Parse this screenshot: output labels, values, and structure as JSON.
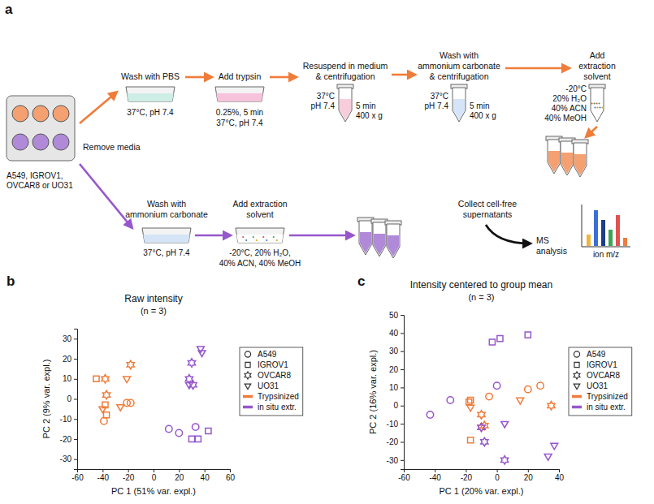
{
  "diagram": {
    "letter": "a",
    "cells": "A549, IGROV1, OVCAR8 or UO31",
    "remove_media": "Remove media",
    "trypsinized_steps": [
      {
        "title": [
          "Wash with PBS"
        ],
        "below": [
          "37°C, pH 7.4"
        ]
      },
      {
        "title": [
          "Add trypsin"
        ],
        "below": [
          "0.25%, 5 min",
          "37°C, pH 7.4"
        ]
      },
      {
        "title": [
          "Resuspend in medium",
          "& centrifugation"
        ],
        "left": [
          "37°C",
          "pH 7.4"
        ],
        "right": [
          "5 min",
          "400 x g"
        ]
      },
      {
        "title": [
          "Wash with",
          "ammonium carbonate",
          "& centrifugation"
        ],
        "left": [
          "37°C",
          "pH 7.4"
        ],
        "right": [
          "5 min",
          "400 x g"
        ]
      },
      {
        "title": [
          "Add",
          "extraction",
          "solvent"
        ],
        "left": [
          "-20°C",
          "20% H₂O",
          "40% ACN",
          "40% MeOH"
        ]
      }
    ],
    "in_situ_steps": [
      {
        "title": [
          "Wash with",
          "ammonium carbonate"
        ],
        "below": [
          "37°C, pH 7.4"
        ]
      },
      {
        "title": [
          "Add extraction",
          "solvent"
        ],
        "below": [
          "-20°C, 20% H₂O,",
          "40% ACN, 40% MeOH"
        ]
      }
    ],
    "collect": [
      "Collect cell-free",
      "supernatants"
    ],
    "ms": [
      "MS",
      "analysis"
    ],
    "ms_axis": "ion m/z"
  },
  "chart_data": [
    {
      "type": "scatter",
      "panel": "b",
      "title": "Raw intensity",
      "subtitle": "(n = 3)",
      "x_label": "PC 1 (51% var. expl.)",
      "y_label": "PC 2 (9% var. expl.)",
      "xlim": [
        -60,
        60
      ],
      "ylim": [
        -35,
        35
      ],
      "xticks": [
        -60,
        -40,
        -20,
        0,
        20,
        40,
        60
      ],
      "yticks": [
        -30,
        -20,
        -10,
        0,
        10,
        20,
        30
      ],
      "grid": false,
      "legend": "right",
      "groups": [
        {
          "name": "Trypsinized",
          "color": "#f07c3a",
          "series": [
            {
              "name": "A549",
              "marker": "circle",
              "x": [
                -39,
                -21,
                -18
              ],
              "y": [
                -11,
                -2,
                -2
              ]
            },
            {
              "name": "IGROV1",
              "marker": "square",
              "x": [
                -45,
                -38,
                -37
              ],
              "y": [
                10,
                -3,
                -8
              ]
            },
            {
              "name": "OVCAR8",
              "marker": "hexagram",
              "x": [
                -38,
                -37,
                -18
              ],
              "y": [
                10,
                2,
                17
              ]
            },
            {
              "name": "UO31",
              "marker": "triangle-down",
              "x": [
                -40,
                -26,
                -21
              ],
              "y": [
                -5,
                -4,
                10
              ]
            }
          ]
        },
        {
          "name": "in situ extr.",
          "color": "#9657cc",
          "series": [
            {
              "name": "A549",
              "marker": "circle",
              "x": [
                12,
                20,
                33
              ],
              "y": [
                -15,
                -17,
                -14
              ]
            },
            {
              "name": "IGROV1",
              "marker": "square",
              "x": [
                30,
                35,
                43
              ],
              "y": [
                -20,
                -20,
                -16
              ]
            },
            {
              "name": "OVCAR8",
              "marker": "hexagram",
              "x": [
                28,
                30,
                31
              ],
              "y": [
                10,
                18,
                7
              ]
            },
            {
              "name": "UO31",
              "marker": "triangle-down",
              "x": [
                28,
                37,
                38
              ],
              "y": [
                7,
                25,
                23
              ]
            }
          ]
        }
      ]
    },
    {
      "type": "scatter",
      "panel": "c",
      "title": "Intensity centered to group mean",
      "subtitle": "(n = 3)",
      "x_label": "PC 1 (20% var. expl.)",
      "y_label": "PC 2 (16% var. expl.)",
      "xlim": [
        -60,
        40
      ],
      "ylim": [
        -35,
        50
      ],
      "xticks": [
        -60,
        -40,
        -20,
        0,
        20,
        40
      ],
      "yticks": [
        -30,
        -20,
        -10,
        0,
        10,
        20,
        30,
        40,
        50
      ],
      "grid": false,
      "legend": "right",
      "groups": [
        {
          "name": "Trypsinized",
          "color": "#f07c3a",
          "series": [
            {
              "name": "A549",
              "marker": "circle",
              "x": [
                -5,
                20,
                28
              ],
              "y": [
                5,
                9,
                11
              ]
            },
            {
              "name": "IGROV1",
              "marker": "square",
              "x": [
                -17,
                -17,
                -18
              ],
              "y": [
                3,
                -19,
                2
              ]
            },
            {
              "name": "OVCAR8",
              "marker": "hexagram",
              "x": [
                -10,
                -8,
                35
              ],
              "y": [
                -5,
                -11,
                0
              ]
            },
            {
              "name": "UO31",
              "marker": "triangle-down",
              "x": [
                -17,
                -10,
                15
              ],
              "y": [
                -1,
                -12,
                3
              ]
            }
          ]
        },
        {
          "name": "in situ extr.",
          "color": "#9657cc",
          "series": [
            {
              "name": "A549",
              "marker": "circle",
              "x": [
                -43,
                -30,
                0
              ],
              "y": [
                -5,
                3,
                11
              ]
            },
            {
              "name": "IGROV1",
              "marker": "square",
              "x": [
                -3,
                2,
                20
              ],
              "y": [
                35,
                37,
                39
              ]
            },
            {
              "name": "OVCAR8",
              "marker": "hexagram",
              "x": [
                -10,
                -8,
                5
              ],
              "y": [
                -12,
                -20,
                -30
              ]
            },
            {
              "name": "UO31",
              "marker": "triangle-down",
              "x": [
                5,
                33,
                37
              ],
              "y": [
                -10,
                -28,
                -22
              ]
            }
          ]
        }
      ]
    }
  ]
}
